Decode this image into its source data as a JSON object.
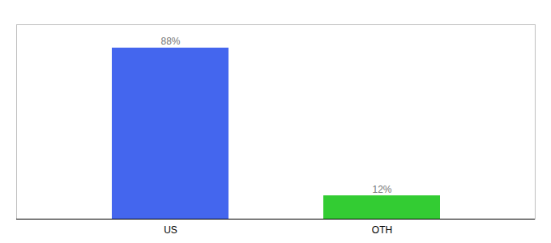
{
  "chart_data": {
    "type": "bar",
    "categories": [
      "US",
      "OTH"
    ],
    "values": [
      88,
      12
    ],
    "colors": [
      "#4466ee",
      "#33cc33"
    ],
    "ylim": [
      0,
      100
    ],
    "data_labels": true,
    "value_labels": [
      "88%",
      "12%"
    ],
    "tick_labels": "x"
  }
}
